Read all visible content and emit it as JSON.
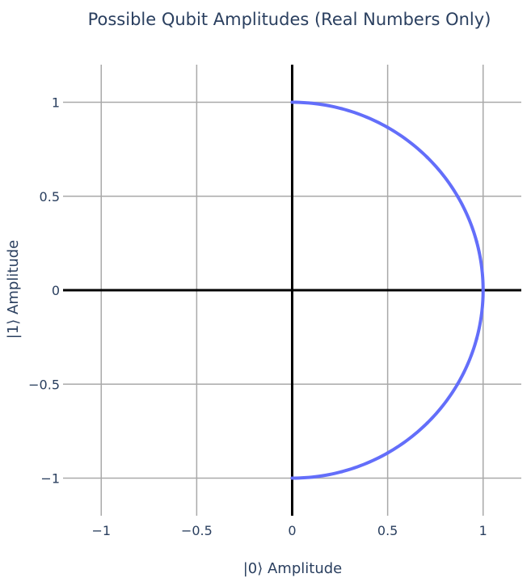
{
  "chart_data": {
    "type": "line",
    "title": "Possible Qubit Amplitudes (Real Numbers Only)",
    "xlabel": "|0⟩ Amplitude",
    "ylabel": "|1⟩ Amplitude",
    "xlim": [
      -1.2,
      1.2
    ],
    "ylim": [
      -1.2,
      1.2
    ],
    "xticks": [
      -1,
      -0.5,
      0,
      0.5,
      1
    ],
    "xtick_labels": [
      "−1",
      "−0.5",
      "0",
      "0.5",
      "1"
    ],
    "yticks": [
      -1,
      -0.5,
      0,
      0.5,
      1
    ],
    "ytick_labels": [
      "−1",
      "−0.5",
      "0",
      "0.5",
      "1"
    ],
    "grid": true,
    "zero_lines": true,
    "series": [
      {
        "color": "#636efa",
        "points": [
          [
            0,
            -1
          ],
          [
            0.259,
            -0.966
          ],
          [
            0.5,
            -0.866
          ],
          [
            0.707,
            -0.707
          ],
          [
            0.866,
            -0.5
          ],
          [
            0.966,
            -0.259
          ],
          [
            1,
            0
          ],
          [
            0.966,
            0.259
          ],
          [
            0.866,
            0.5
          ],
          [
            0.707,
            0.707
          ],
          [
            0.5,
            0.866
          ],
          [
            0.259,
            0.966
          ],
          [
            0,
            1
          ]
        ]
      }
    ]
  }
}
